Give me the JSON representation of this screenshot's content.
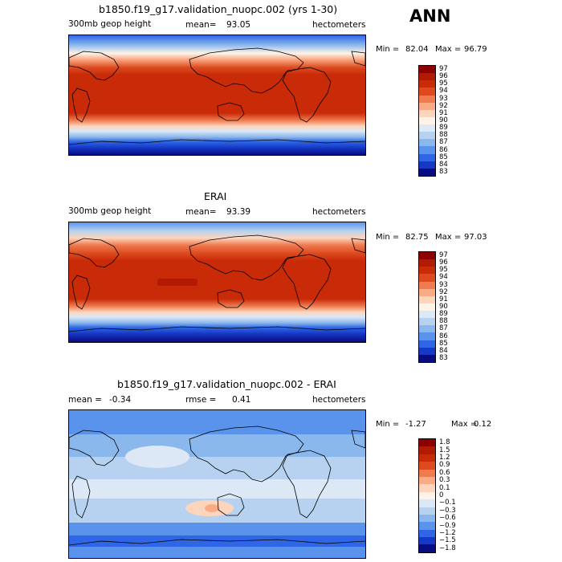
{
  "season": "ANN",
  "panels": [
    {
      "title": "b1850.f19_g17.validation_nuopc.002 (yrs 1-30)",
      "variable": "300mb geop height",
      "mean_label": "mean=",
      "mean_value": "93.05",
      "units": "hectometers",
      "min_label": "Min =",
      "min_value": "82.04",
      "max_label": "Max =",
      "max_value": "96.79"
    },
    {
      "title": "ERAI",
      "variable": "300mb geop height",
      "mean_label": "mean=",
      "mean_value": "93.39",
      "units": "hectometers",
      "min_label": "Min =",
      "min_value": "82.75",
      "max_label": "Max =",
      "max_value": "97.03"
    },
    {
      "title": "b1850.f19_g17.validation_nuopc.002 - ERAI",
      "mean_label": "mean =",
      "mean_value": "-0.34",
      "rmse_label": "rmse =",
      "rmse_value": "0.41",
      "units": "hectometers",
      "min_label": "Min =",
      "min_value": "-1.27",
      "max_label": "Max =",
      "max_value": "0.12"
    }
  ],
  "chart_data": [
    {
      "type": "heatmap",
      "title": "b1850.f19_g17.validation_nuopc.002 (yrs 1-30)",
      "levels": [
        "97",
        "96",
        "95",
        "94",
        "93",
        "92",
        "91",
        "90",
        "89",
        "88",
        "87",
        "86",
        "85",
        "84",
        "83"
      ],
      "colors": [
        "#8b0000",
        "#b11a03",
        "#c92a08",
        "#dc4a1e",
        "#ef7b4f",
        "#f9ab86",
        "#fdd5bd",
        "#fff3e8",
        "#dce8f6",
        "#b6d2f0",
        "#8ab7ec",
        "#5a93ec",
        "#2e66e6",
        "#1638c6",
        "#080c82"
      ]
    },
    {
      "type": "heatmap",
      "title": "ERAI",
      "levels": [
        "97",
        "96",
        "95",
        "94",
        "93",
        "92",
        "91",
        "90",
        "89",
        "88",
        "87",
        "86",
        "85",
        "84",
        "83"
      ],
      "colors": [
        "#8b0000",
        "#b11a03",
        "#c92a08",
        "#dc4a1e",
        "#ef7b4f",
        "#f9ab86",
        "#fdd5bd",
        "#fff3e8",
        "#dce8f6",
        "#b6d2f0",
        "#8ab7ec",
        "#5a93ec",
        "#2e66e6",
        "#1638c6",
        "#080c82"
      ]
    },
    {
      "type": "heatmap",
      "title": "b1850.f19_g17.validation_nuopc.002 - ERAI",
      "levels": [
        "1.8",
        "1.5",
        "1.2",
        "0.9",
        "0.6",
        "0.3",
        "0.1",
        "0",
        "−0.1",
        "−0.3",
        "−0.6",
        "−0.9",
        "−1.2",
        "−1.5",
        "−1.8"
      ],
      "colors": [
        "#8b0000",
        "#b11a03",
        "#c92a08",
        "#dc4a1e",
        "#ef7b4f",
        "#f9ab86",
        "#fdd5bd",
        "#fff3e8",
        "#dce8f6",
        "#b6d2f0",
        "#8ab7ec",
        "#5a93ec",
        "#2e66e6",
        "#1638c6",
        "#080c82"
      ]
    }
  ]
}
